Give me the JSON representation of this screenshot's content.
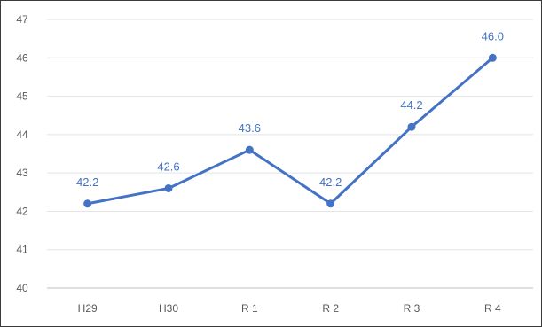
{
  "chart_data": {
    "type": "line",
    "categories": [
      "H29",
      "H30",
      "R 1",
      "R 2",
      "R 3",
      "R 4"
    ],
    "series": [
      {
        "values": [
          42.2,
          42.6,
          43.6,
          42.2,
          44.2,
          46.0
        ]
      }
    ],
    "data_labels": [
      "42.2",
      "42.6",
      "43.6",
      "42.2",
      "44.2",
      "46.0"
    ],
    "y_ticks": [
      "40",
      "41",
      "42",
      "43",
      "44",
      "45",
      "46",
      "47"
    ],
    "ylim": [
      40,
      47
    ],
    "grid": true,
    "legend": "none",
    "colors": {
      "series": "#4472C4",
      "grid": "#e3e3e3",
      "axis": "#bfbfbf",
      "tick_text": "#595959"
    }
  }
}
